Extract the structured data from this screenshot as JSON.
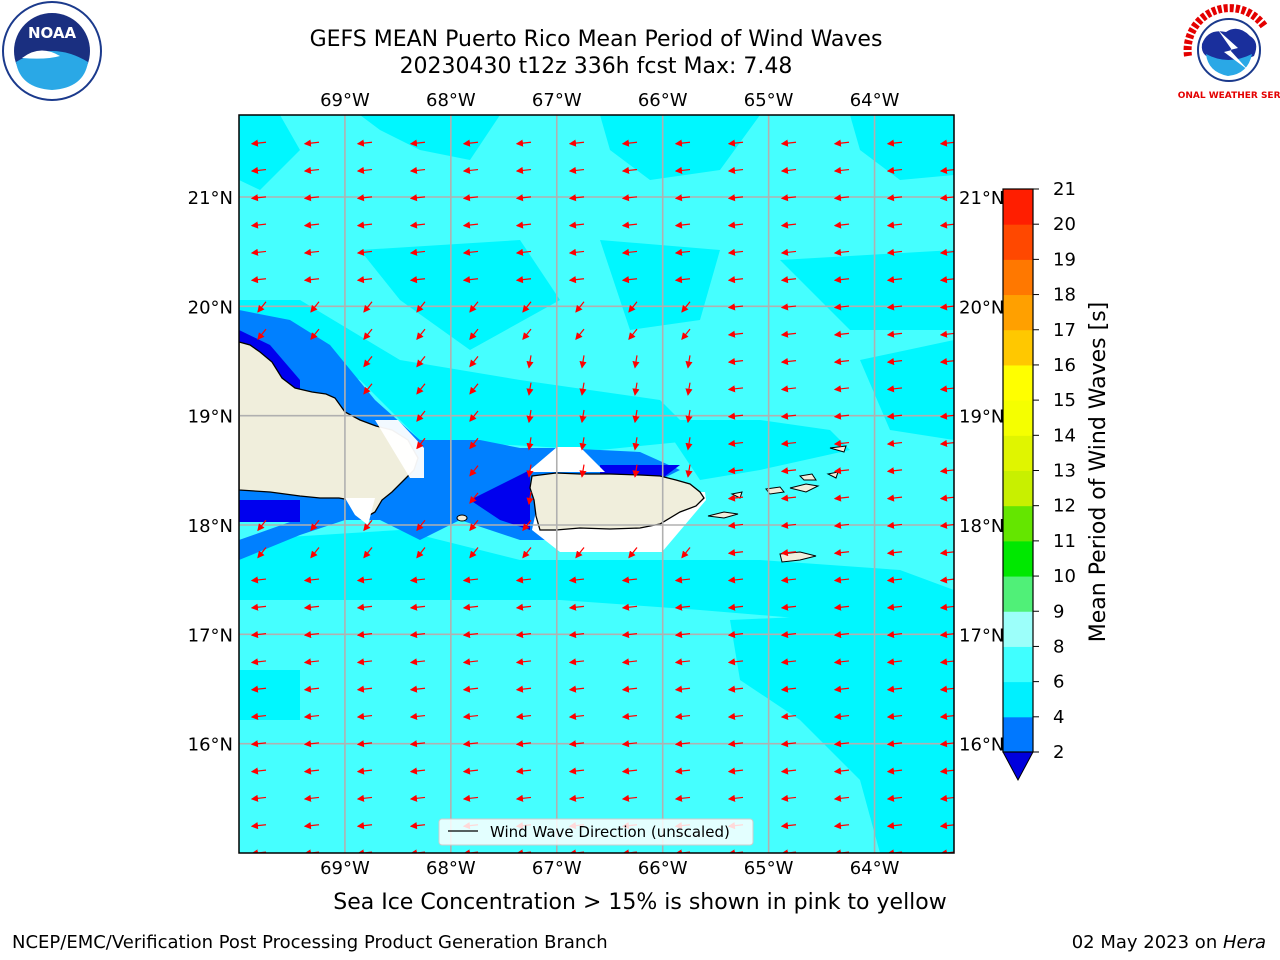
{
  "header": {
    "title_line1": "GEFS MEAN Puerto Rico Mean Period of Wind Waves",
    "title_line2": "20230430 t12z 336h fcst   Max: 7.48"
  },
  "logos": {
    "left": {
      "icon": "noaa-logo",
      "text": "NOAA"
    },
    "right": {
      "icon": "national-weather-service-logo",
      "text": "NATIONAL WEATHER SERVICE"
    }
  },
  "map": {
    "lon_ticks": [
      "69°W",
      "68°W",
      "67°W",
      "66°W",
      "65°W",
      "64°W"
    ],
    "lat_ticks": [
      "21°N",
      "20°N",
      "19°N",
      "18°N",
      "17°N",
      "16°N"
    ],
    "lon_range": [
      -70.0,
      -63.25
    ],
    "lat_range": [
      15.0,
      21.75
    ],
    "colors": {
      "ocean_cyan": "#00f7ff",
      "ocean_light": "#45ffff",
      "ocean_blue": "#0080ff",
      "ocean_deep": "#0000ee",
      "land": "#f0eedc",
      "arrow": "#ff0000",
      "grid": "#b0b0b0"
    },
    "legend_label": "Wind Wave Direction (unscaled)"
  },
  "colorbar": {
    "label": "Mean Period of Wind Waves [s]",
    "ticks": [
      "2",
      "4",
      "6",
      "8",
      "9",
      "10",
      "11",
      "12",
      "13",
      "14",
      "15",
      "16",
      "17",
      "18",
      "19",
      "20",
      "21"
    ],
    "colors": [
      "#0078ff",
      "#00f0ff",
      "#40ffff",
      "#9cfffa",
      "#50f078",
      "#00e800",
      "#64e600",
      "#c8f000",
      "#e0f500",
      "#f5ff00",
      "#ffff00",
      "#ffc800",
      "#ffa000",
      "#ff7800",
      "#ff4800",
      "#ff1e00"
    ],
    "under_color": "#0000dd"
  },
  "notes": {
    "sea_ice": "Sea Ice Concentration > 15% is shown in pink to yellow",
    "producer": "NCEP/EMC/Verification Post Processing Product Generation Branch",
    "date_prefix": "02 May 2023 on ",
    "host": "Hera"
  }
}
